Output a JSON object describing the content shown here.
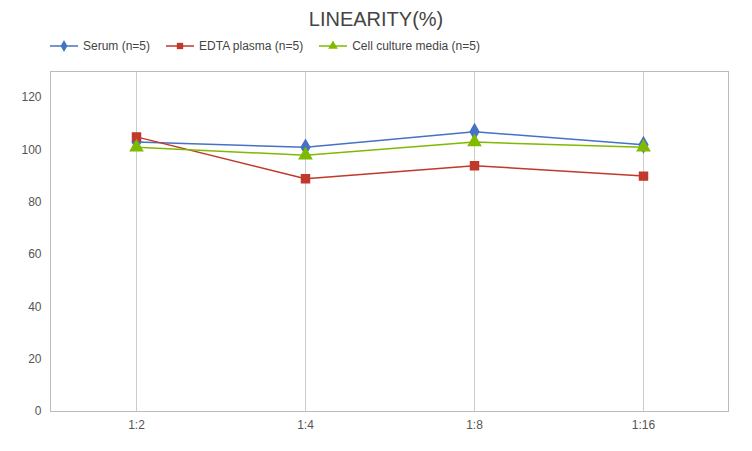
{
  "chart_data": {
    "type": "line",
    "title": "LINEARITY(%)",
    "categories": [
      "1:2",
      "1:4",
      "1:8",
      "1:16"
    ],
    "series": [
      {
        "name": "Serum (n=5)",
        "color": "#4472C4",
        "marker": "diamond",
        "values": [
          103,
          101,
          107,
          102
        ]
      },
      {
        "name": "EDTA plasma (n=5)",
        "color": "#C0392B",
        "marker": "square",
        "values": [
          105,
          89,
          94,
          90
        ]
      },
      {
        "name": "Cell culture media (n=5)",
        "color": "#7FBA00",
        "marker": "triangle",
        "values": [
          101,
          98,
          103,
          101
        ]
      }
    ],
    "ylim": [
      0,
      130
    ],
    "yticks": [
      0,
      20,
      40,
      60,
      80,
      100,
      120
    ],
    "grid": "x",
    "legend": "top left"
  }
}
